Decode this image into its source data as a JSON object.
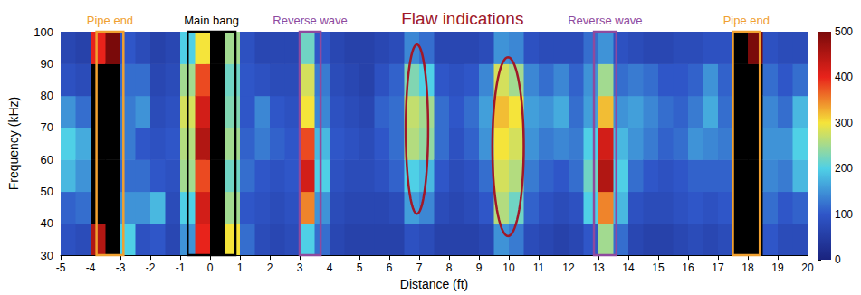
{
  "chart_data": {
    "type": "heatmap",
    "xlabel": "Distance (ft)",
    "ylabel": "Frequency (kHz)",
    "xlim": [
      -5,
      20
    ],
    "xticks": [
      -5,
      -4,
      -3,
      -2,
      -1,
      0,
      1,
      2,
      3,
      4,
      5,
      6,
      7,
      8,
      9,
      10,
      11,
      12,
      13,
      14,
      15,
      16,
      17,
      18,
      19,
      20
    ],
    "ylim": [
      30,
      100
    ],
    "yticks": [
      30,
      40,
      50,
      60,
      70,
      80,
      90,
      100
    ],
    "grid": false,
    "colorbar": {
      "range": [
        0,
        500
      ],
      "ticks": [
        0,
        100,
        200,
        300,
        400,
        500
      ]
    },
    "cells": {
      "x": [
        -4.75,
        -4.25,
        -3.75,
        -3.25,
        -2.75,
        -2.25,
        -1.75,
        -1.25,
        -0.75,
        -0.25,
        0.25,
        0.75,
        1.25,
        1.75,
        2.25,
        2.75,
        3.25,
        3.75,
        4.25,
        4.75,
        5.25,
        5.75,
        6.25,
        6.75,
        7.25,
        7.75,
        8.25,
        8.75,
        9.25,
        9.75,
        10.25,
        10.75,
        11.25,
        11.75,
        12.25,
        12.75,
        13.25,
        13.75,
        14.25,
        14.75,
        15.25,
        15.75,
        16.25,
        16.75,
        17.25,
        17.75,
        18.25,
        18.75,
        19.25,
        19.75
      ],
      "y": [
        35,
        45,
        55,
        65,
        75,
        85,
        95
      ],
      "values": [
        [
          90,
          110,
          180,
          200,
          150,
          90,
          70
        ],
        [
          80,
          120,
          150,
          170,
          120,
          80,
          60
        ],
        [
          450,
          550,
          600,
          600,
          600,
          550,
          400
        ],
        [
          600,
          700,
          700,
          700,
          700,
          650,
          500
        ],
        [
          200,
          150,
          120,
          130,
          130,
          120,
          100
        ],
        [
          90,
          150,
          120,
          100,
          150,
          120,
          80
        ],
        [
          100,
          180,
          100,
          90,
          80,
          70,
          60
        ],
        [
          70,
          80,
          90,
          100,
          90,
          80,
          70
        ],
        [
          150,
          200,
          250,
          260,
          280,
          250,
          200
        ],
        [
          400,
          420,
          380,
          450,
          420,
          380,
          300
        ],
        [
          650,
          700,
          700,
          700,
          700,
          650,
          600
        ],
        [
          300,
          250,
          220,
          250,
          230,
          220,
          250
        ],
        [
          120,
          100,
          120,
          110,
          100,
          100,
          90
        ],
        [
          80,
          90,
          100,
          130,
          140,
          90,
          70
        ],
        [
          70,
          80,
          90,
          110,
          100,
          80,
          70
        ],
        [
          80,
          90,
          100,
          100,
          90,
          80,
          70
        ],
        [
          200,
          350,
          420,
          380,
          300,
          280,
          220
        ],
        [
          120,
          150,
          200,
          180,
          140,
          130,
          100
        ],
        [
          70,
          80,
          90,
          100,
          90,
          80,
          70
        ],
        [
          60,
          70,
          80,
          90,
          80,
          70,
          60
        ],
        [
          60,
          70,
          80,
          80,
          70,
          60,
          60
        ],
        [
          60,
          70,
          90,
          100,
          110,
          90,
          70
        ],
        [
          60,
          80,
          110,
          120,
          120,
          110,
          80
        ],
        [
          90,
          160,
          200,
          260,
          270,
          230,
          140
        ],
        [
          80,
          140,
          180,
          240,
          250,
          200,
          120
        ],
        [
          60,
          80,
          100,
          120,
          120,
          100,
          70
        ],
        [
          60,
          70,
          80,
          90,
          100,
          90,
          70
        ],
        [
          60,
          80,
          90,
          110,
          120,
          100,
          70
        ],
        [
          70,
          100,
          120,
          150,
          160,
          140,
          80
        ],
        [
          150,
          260,
          280,
          300,
          320,
          280,
          150
        ],
        [
          130,
          220,
          260,
          280,
          300,
          250,
          140
        ],
        [
          80,
          110,
          130,
          150,
          160,
          140,
          90
        ],
        [
          70,
          90,
          110,
          130,
          150,
          120,
          80
        ],
        [
          60,
          80,
          100,
          140,
          170,
          140,
          80
        ],
        [
          70,
          90,
          120,
          130,
          120,
          110,
          80
        ],
        [
          100,
          200,
          220,
          200,
          160,
          150,
          120
        ],
        [
          250,
          350,
          450,
          420,
          320,
          250,
          150
        ],
        [
          120,
          180,
          200,
          180,
          150,
          120,
          90
        ],
        [
          70,
          90,
          120,
          150,
          160,
          130,
          80
        ],
        [
          60,
          80,
          100,
          130,
          140,
          120,
          70
        ],
        [
          60,
          80,
          90,
          110,
          120,
          100,
          70
        ],
        [
          70,
          90,
          100,
          120,
          110,
          100,
          80
        ],
        [
          80,
          100,
          110,
          150,
          130,
          110,
          80
        ],
        [
          70,
          90,
          110,
          140,
          170,
          150,
          90
        ],
        [
          80,
          100,
          110,
          130,
          120,
          110,
          90
        ],
        [
          650,
          700,
          700,
          700,
          700,
          650,
          550
        ],
        [
          600,
          650,
          650,
          650,
          650,
          600,
          500
        ],
        [
          100,
          120,
          140,
          150,
          140,
          120,
          90
        ],
        [
          80,
          100,
          130,
          150,
          120,
          100,
          80
        ],
        [
          80,
          110,
          180,
          200,
          180,
          120,
          80
        ]
      ]
    },
    "annotations": [
      {
        "text": "Pipe end",
        "color": "#f0a030",
        "shapes": [
          {
            "shape": "rect",
            "x": [
              -3.8,
              -2.9
            ],
            "y": [
              30,
              100
            ]
          }
        ]
      },
      {
        "text": "Main bang",
        "color": "#000000",
        "shapes": [
          {
            "shape": "rect",
            "x": [
              -0.75,
              0.85
            ],
            "y": [
              30,
              100
            ]
          }
        ]
      },
      {
        "text": "Reverse wave",
        "color": "#8e4a9e",
        "shapes": [
          {
            "shape": "rect",
            "x": [
              3.0,
              3.7
            ],
            "y": [
              30,
              100
            ]
          }
        ]
      },
      {
        "text": "Flaw indications",
        "color": "#a01828",
        "shapes": [
          {
            "shape": "ellipse",
            "x": [
              6.55,
              7.3
            ],
            "y": [
              43,
              96
            ]
          },
          {
            "shape": "ellipse",
            "x": [
              9.45,
              10.5
            ],
            "y": [
              36,
              92
            ]
          }
        ]
      },
      {
        "text": "Reverse wave",
        "color": "#8e4a9e",
        "shapes": [
          {
            "shape": "rect",
            "x": [
              12.85,
              13.6
            ],
            "y": [
              30,
              100
            ]
          }
        ]
      },
      {
        "text": "Pipe end",
        "color": "#f0a030",
        "shapes": [
          {
            "shape": "rect",
            "x": [
              17.5,
              18.4
            ],
            "y": [
              30,
              100
            ]
          }
        ]
      }
    ]
  }
}
